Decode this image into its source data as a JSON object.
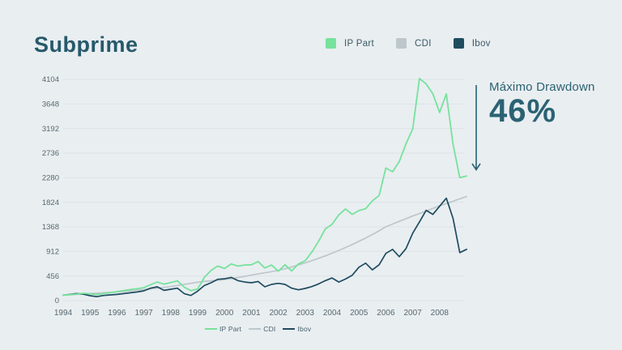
{
  "title": "Subprime",
  "colors": {
    "background": "#e9eef1",
    "title_text": "#27596b",
    "axis_text": "#56686f",
    "grid": "#dde3e7",
    "annotation": "#2b6273",
    "ip_part": "#76e29c",
    "cdi": "#bdc7cc",
    "ibov": "#1f4c5f"
  },
  "legend_top": [
    {
      "label": "IP Part"
    },
    {
      "label": "CDI"
    },
    {
      "label": "Ibov"
    }
  ],
  "legend_bottom": [
    {
      "label": "IP Part"
    },
    {
      "label": "CDI"
    },
    {
      "label": "Ibov"
    }
  ],
  "annotation": {
    "label": "Máximo Drawdown",
    "value": "46%"
  },
  "chart_data": {
    "type": "line",
    "title": "Subprime",
    "xlabel": "",
    "ylabel": "",
    "grid": true,
    "legend_position": "top",
    "ylim": [
      0,
      4104
    ],
    "xlim": [
      1994,
      2009
    ],
    "y_ticks": [
      0,
      456,
      912,
      1368,
      1824,
      2280,
      2736,
      3192,
      3648,
      4104
    ],
    "x_ticks": [
      1994,
      1995,
      1996,
      1997,
      1998,
      1999,
      2000,
      2001,
      2002,
      2003,
      2004,
      2005,
      2006,
      2007,
      2008
    ],
    "x": [
      1994.0,
      1994.25,
      1994.5,
      1994.75,
      1995.0,
      1995.25,
      1995.5,
      1995.75,
      1996.0,
      1996.25,
      1996.5,
      1996.75,
      1997.0,
      1997.25,
      1997.5,
      1997.75,
      1998.0,
      1998.25,
      1998.5,
      1998.75,
      1999.0,
      1999.25,
      1999.5,
      1999.75,
      2000.0,
      2000.25,
      2000.5,
      2000.75,
      2001.0,
      2001.25,
      2001.5,
      2001.75,
      2002.0,
      2002.25,
      2002.5,
      2002.75,
      2003.0,
      2003.25,
      2003.5,
      2003.75,
      2004.0,
      2004.25,
      2004.5,
      2004.75,
      2005.0,
      2005.25,
      2005.5,
      2005.75,
      2006.0,
      2006.25,
      2006.5,
      2006.75,
      2007.0,
      2007.25,
      2007.5,
      2007.75,
      2008.0,
      2008.25,
      2008.5,
      2008.75,
      2009.0
    ],
    "series": [
      {
        "name": "IP Part",
        "color": "#76e29c",
        "values": [
          100,
          110,
          120,
          135,
          125,
          110,
          130,
          148,
          165,
          185,
          205,
          220,
          240,
          295,
          345,
          305,
          335,
          365,
          250,
          185,
          215,
          430,
          560,
          640,
          595,
          680,
          640,
          660,
          665,
          725,
          605,
          660,
          545,
          665,
          550,
          680,
          740,
          900,
          1100,
          1330,
          1415,
          1590,
          1700,
          1600,
          1670,
          1705,
          1850,
          1950,
          2460,
          2390,
          2580,
          2910,
          3185,
          4120,
          4020,
          3835,
          3490,
          3835,
          2900,
          2280,
          2310
        ]
      },
      {
        "name": "CDI",
        "color": "#bdc7cc",
        "values": [
          100,
          107,
          114,
          122,
          130,
          137,
          144,
          152,
          160,
          170,
          181,
          192,
          205,
          218,
          231,
          245,
          260,
          280,
          300,
          320,
          340,
          355,
          367,
          378,
          390,
          408,
          428,
          450,
          472,
          494,
          515,
          537,
          560,
          590,
          625,
          660,
          700,
          740,
          785,
          830,
          880,
          930,
          985,
          1040,
          1100,
          1160,
          1225,
          1295,
          1370,
          1420,
          1470,
          1520,
          1570,
          1615,
          1660,
          1710,
          1760,
          1800,
          1845,
          1888,
          1930
        ]
      },
      {
        "name": "Ibov",
        "color": "#1f4c5f",
        "values": [
          100,
          115,
          130,
          120,
          90,
          72,
          95,
          105,
          115,
          130,
          145,
          160,
          180,
          230,
          255,
          190,
          210,
          230,
          130,
          95,
          175,
          280,
          330,
          395,
          405,
          430,
          370,
          345,
          330,
          355,
          255,
          300,
          320,
          300,
          230,
          200,
          225,
          260,
          310,
          370,
          420,
          345,
          400,
          470,
          620,
          695,
          570,
          665,
          875,
          950,
          815,
          965,
          1250,
          1460,
          1675,
          1600,
          1750,
          1900,
          1525,
          890,
          950
        ]
      }
    ]
  }
}
